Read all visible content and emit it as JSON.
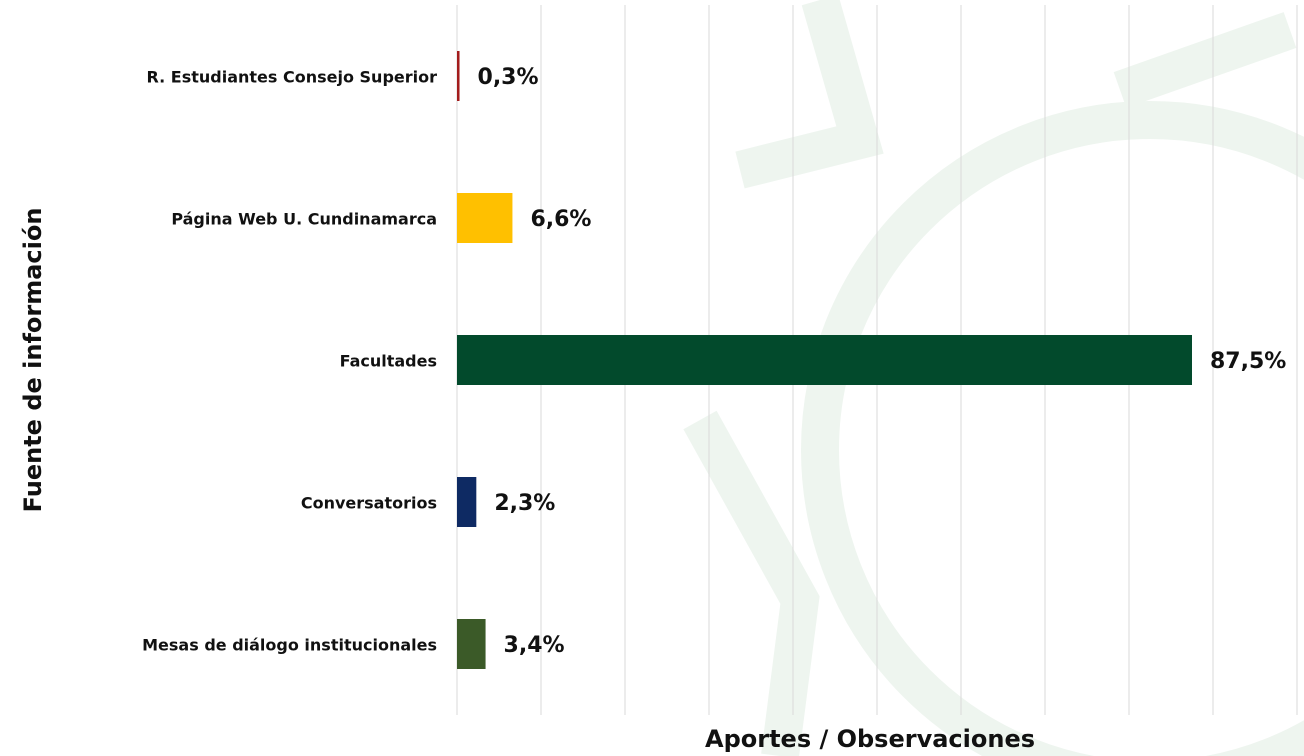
{
  "chart_data": {
    "type": "bar",
    "orientation": "horizontal",
    "categories": [
      "R. Estudiantes Consejo Superior",
      "Página Web U. Cundinamarca",
      "Facultades",
      "Conversatorios",
      "Mesas de diálogo institucionales"
    ],
    "values": [
      0.3,
      6.6,
      87.5,
      2.3,
      3.4
    ],
    "value_labels": [
      "0,3%",
      "6,6%",
      "87,5%",
      "2,3%",
      "3,4%"
    ],
    "colors": [
      "#a31c1c",
      "#ffc000",
      "#024a2c",
      "#0e2a63",
      "#3b5a28"
    ],
    "xlabel": "Aportes / Observaciones",
    "ylabel": "Fuente de información",
    "xlim": [
      0,
      100
    ],
    "xticks": [
      0,
      10,
      20,
      30,
      40,
      50,
      60,
      70,
      80,
      90,
      100
    ],
    "grid": true
  }
}
